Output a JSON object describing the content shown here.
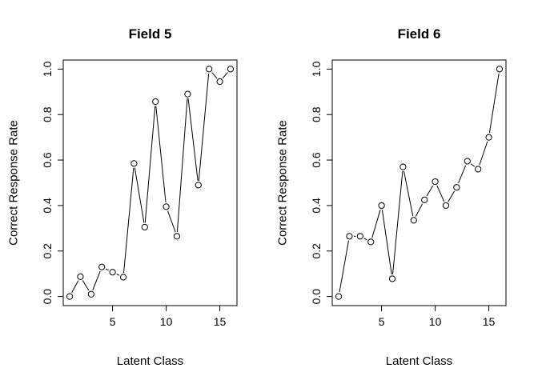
{
  "chart_data": [
    {
      "type": "line",
      "title": "Field 5",
      "xlabel": "Latent Class",
      "ylabel": "Correct Response Rate",
      "xlim": [
        0.4,
        16.6
      ],
      "ylim": [
        -0.04,
        1.04
      ],
      "xticks": [
        5,
        10,
        15
      ],
      "xtick_labels": [
        "5",
        "10",
        "15"
      ],
      "yticks": [
        0.0,
        0.2,
        0.4,
        0.6,
        0.8,
        1.0
      ],
      "ytick_labels": [
        "0.0",
        "0.2",
        "0.4",
        "0.6",
        "0.8",
        "1.0"
      ],
      "grid": false,
      "markers": "open-circle",
      "x": [
        1,
        2,
        3,
        4,
        5,
        6,
        7,
        8,
        9,
        10,
        11,
        12,
        13,
        14,
        15,
        16
      ],
      "y": [
        0.0,
        0.087,
        0.01,
        0.13,
        0.107,
        0.085,
        0.585,
        0.305,
        0.857,
        0.395,
        0.265,
        0.89,
        0.49,
        1.0,
        0.945,
        1.0
      ]
    },
    {
      "type": "line",
      "title": "Field 6",
      "xlabel": "Latent Class",
      "ylabel": "Correct Response Rate",
      "xlim": [
        0.4,
        16.6
      ],
      "ylim": [
        -0.04,
        1.04
      ],
      "xticks": [
        5,
        10,
        15
      ],
      "xtick_labels": [
        "5",
        "10",
        "15"
      ],
      "yticks": [
        0.0,
        0.2,
        0.4,
        0.6,
        0.8,
        1.0
      ],
      "ytick_labels": [
        "0.0",
        "0.2",
        "0.4",
        "0.6",
        "0.8",
        "1.0"
      ],
      "grid": false,
      "markers": "open-circle",
      "x": [
        1,
        2,
        3,
        4,
        5,
        6,
        7,
        8,
        9,
        10,
        11,
        12,
        13,
        14,
        15,
        16
      ],
      "y": [
        0.0,
        0.265,
        0.265,
        0.24,
        0.4,
        0.078,
        0.57,
        0.335,
        0.425,
        0.505,
        0.4,
        0.48,
        0.595,
        0.56,
        0.7,
        1.0
      ]
    }
  ]
}
